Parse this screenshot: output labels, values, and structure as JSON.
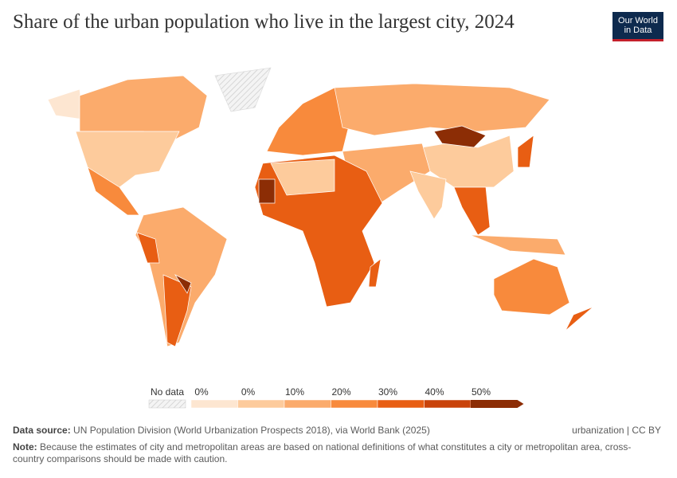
{
  "header": {
    "title": "Share of the urban population who live in the largest city, 2024",
    "logo": [
      "Our World",
      "in Data"
    ]
  },
  "legend": {
    "no_data": "No data",
    "labels": [
      "0%",
      "0%",
      "10%",
      "20%",
      "30%",
      "40%",
      "50%"
    ],
    "colors": [
      "#fde6d1",
      "#fdcb9c",
      "#fbab6c",
      "#f88a3c",
      "#e85e13",
      "#c9430a",
      "#8c2d05"
    ]
  },
  "footer": {
    "source_label": "Data source:",
    "source": "UN Population Division (World Urbanization Prospects 2018), via World Bank (2025)",
    "license": "urbanization | CC BY",
    "note_label": "Note:",
    "note": "Because the estimates of city and metropolitan areas are based on national definitions of what constitutes a city or metropolitan area, cross-country comparisons should be made with caution."
  }
}
